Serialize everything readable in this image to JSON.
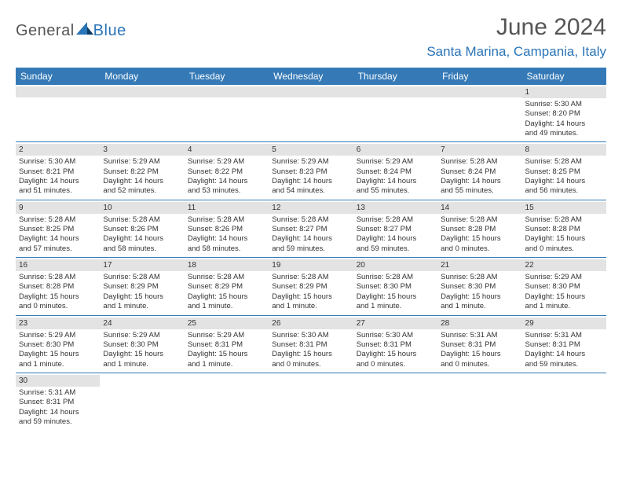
{
  "logo": {
    "general": "General",
    "blue": "Blue"
  },
  "title": "June 2024",
  "location": "Santa Marina, Campania, Italy",
  "weekdays": [
    "Sunday",
    "Monday",
    "Tuesday",
    "Wednesday",
    "Thursday",
    "Friday",
    "Saturday"
  ],
  "colors": {
    "header_bg": "#357ab7",
    "header_text": "#ffffff",
    "daynum_bg": "#e3e3e3",
    "accent": "#2a74b8",
    "body_text": "#333333",
    "title_text": "#555555"
  },
  "weeks": [
    [
      {
        "blank": true
      },
      {
        "blank": true
      },
      {
        "blank": true
      },
      {
        "blank": true
      },
      {
        "blank": true
      },
      {
        "blank": true
      },
      {
        "n": "1",
        "sr": "Sunrise: 5:30 AM",
        "ss": "Sunset: 8:20 PM",
        "dl1": "Daylight: 14 hours",
        "dl2": "and 49 minutes."
      }
    ],
    [
      {
        "n": "2",
        "sr": "Sunrise: 5:30 AM",
        "ss": "Sunset: 8:21 PM",
        "dl1": "Daylight: 14 hours",
        "dl2": "and 51 minutes."
      },
      {
        "n": "3",
        "sr": "Sunrise: 5:29 AM",
        "ss": "Sunset: 8:22 PM",
        "dl1": "Daylight: 14 hours",
        "dl2": "and 52 minutes."
      },
      {
        "n": "4",
        "sr": "Sunrise: 5:29 AM",
        "ss": "Sunset: 8:22 PM",
        "dl1": "Daylight: 14 hours",
        "dl2": "and 53 minutes."
      },
      {
        "n": "5",
        "sr": "Sunrise: 5:29 AM",
        "ss": "Sunset: 8:23 PM",
        "dl1": "Daylight: 14 hours",
        "dl2": "and 54 minutes."
      },
      {
        "n": "6",
        "sr": "Sunrise: 5:29 AM",
        "ss": "Sunset: 8:24 PM",
        "dl1": "Daylight: 14 hours",
        "dl2": "and 55 minutes."
      },
      {
        "n": "7",
        "sr": "Sunrise: 5:28 AM",
        "ss": "Sunset: 8:24 PM",
        "dl1": "Daylight: 14 hours",
        "dl2": "and 55 minutes."
      },
      {
        "n": "8",
        "sr": "Sunrise: 5:28 AM",
        "ss": "Sunset: 8:25 PM",
        "dl1": "Daylight: 14 hours",
        "dl2": "and 56 minutes."
      }
    ],
    [
      {
        "n": "9",
        "sr": "Sunrise: 5:28 AM",
        "ss": "Sunset: 8:25 PM",
        "dl1": "Daylight: 14 hours",
        "dl2": "and 57 minutes."
      },
      {
        "n": "10",
        "sr": "Sunrise: 5:28 AM",
        "ss": "Sunset: 8:26 PM",
        "dl1": "Daylight: 14 hours",
        "dl2": "and 58 minutes."
      },
      {
        "n": "11",
        "sr": "Sunrise: 5:28 AM",
        "ss": "Sunset: 8:26 PM",
        "dl1": "Daylight: 14 hours",
        "dl2": "and 58 minutes."
      },
      {
        "n": "12",
        "sr": "Sunrise: 5:28 AM",
        "ss": "Sunset: 8:27 PM",
        "dl1": "Daylight: 14 hours",
        "dl2": "and 59 minutes."
      },
      {
        "n": "13",
        "sr": "Sunrise: 5:28 AM",
        "ss": "Sunset: 8:27 PM",
        "dl1": "Daylight: 14 hours",
        "dl2": "and 59 minutes."
      },
      {
        "n": "14",
        "sr": "Sunrise: 5:28 AM",
        "ss": "Sunset: 8:28 PM",
        "dl1": "Daylight: 15 hours",
        "dl2": "and 0 minutes."
      },
      {
        "n": "15",
        "sr": "Sunrise: 5:28 AM",
        "ss": "Sunset: 8:28 PM",
        "dl1": "Daylight: 15 hours",
        "dl2": "and 0 minutes."
      }
    ],
    [
      {
        "n": "16",
        "sr": "Sunrise: 5:28 AM",
        "ss": "Sunset: 8:28 PM",
        "dl1": "Daylight: 15 hours",
        "dl2": "and 0 minutes."
      },
      {
        "n": "17",
        "sr": "Sunrise: 5:28 AM",
        "ss": "Sunset: 8:29 PM",
        "dl1": "Daylight: 15 hours",
        "dl2": "and 1 minute."
      },
      {
        "n": "18",
        "sr": "Sunrise: 5:28 AM",
        "ss": "Sunset: 8:29 PM",
        "dl1": "Daylight: 15 hours",
        "dl2": "and 1 minute."
      },
      {
        "n": "19",
        "sr": "Sunrise: 5:28 AM",
        "ss": "Sunset: 8:29 PM",
        "dl1": "Daylight: 15 hours",
        "dl2": "and 1 minute."
      },
      {
        "n": "20",
        "sr": "Sunrise: 5:28 AM",
        "ss": "Sunset: 8:30 PM",
        "dl1": "Daylight: 15 hours",
        "dl2": "and 1 minute."
      },
      {
        "n": "21",
        "sr": "Sunrise: 5:28 AM",
        "ss": "Sunset: 8:30 PM",
        "dl1": "Daylight: 15 hours",
        "dl2": "and 1 minute."
      },
      {
        "n": "22",
        "sr": "Sunrise: 5:29 AM",
        "ss": "Sunset: 8:30 PM",
        "dl1": "Daylight: 15 hours",
        "dl2": "and 1 minute."
      }
    ],
    [
      {
        "n": "23",
        "sr": "Sunrise: 5:29 AM",
        "ss": "Sunset: 8:30 PM",
        "dl1": "Daylight: 15 hours",
        "dl2": "and 1 minute."
      },
      {
        "n": "24",
        "sr": "Sunrise: 5:29 AM",
        "ss": "Sunset: 8:30 PM",
        "dl1": "Daylight: 15 hours",
        "dl2": "and 1 minute."
      },
      {
        "n": "25",
        "sr": "Sunrise: 5:29 AM",
        "ss": "Sunset: 8:31 PM",
        "dl1": "Daylight: 15 hours",
        "dl2": "and 1 minute."
      },
      {
        "n": "26",
        "sr": "Sunrise: 5:30 AM",
        "ss": "Sunset: 8:31 PM",
        "dl1": "Daylight: 15 hours",
        "dl2": "and 0 minutes."
      },
      {
        "n": "27",
        "sr": "Sunrise: 5:30 AM",
        "ss": "Sunset: 8:31 PM",
        "dl1": "Daylight: 15 hours",
        "dl2": "and 0 minutes."
      },
      {
        "n": "28",
        "sr": "Sunrise: 5:31 AM",
        "ss": "Sunset: 8:31 PM",
        "dl1": "Daylight: 15 hours",
        "dl2": "and 0 minutes."
      },
      {
        "n": "29",
        "sr": "Sunrise: 5:31 AM",
        "ss": "Sunset: 8:31 PM",
        "dl1": "Daylight: 14 hours",
        "dl2": "and 59 minutes."
      }
    ],
    [
      {
        "n": "30",
        "sr": "Sunrise: 5:31 AM",
        "ss": "Sunset: 8:31 PM",
        "dl1": "Daylight: 14 hours",
        "dl2": "and 59 minutes."
      },
      {
        "blank": true
      },
      {
        "blank": true
      },
      {
        "blank": true
      },
      {
        "blank": true
      },
      {
        "blank": true
      },
      {
        "blank": true
      }
    ]
  ]
}
